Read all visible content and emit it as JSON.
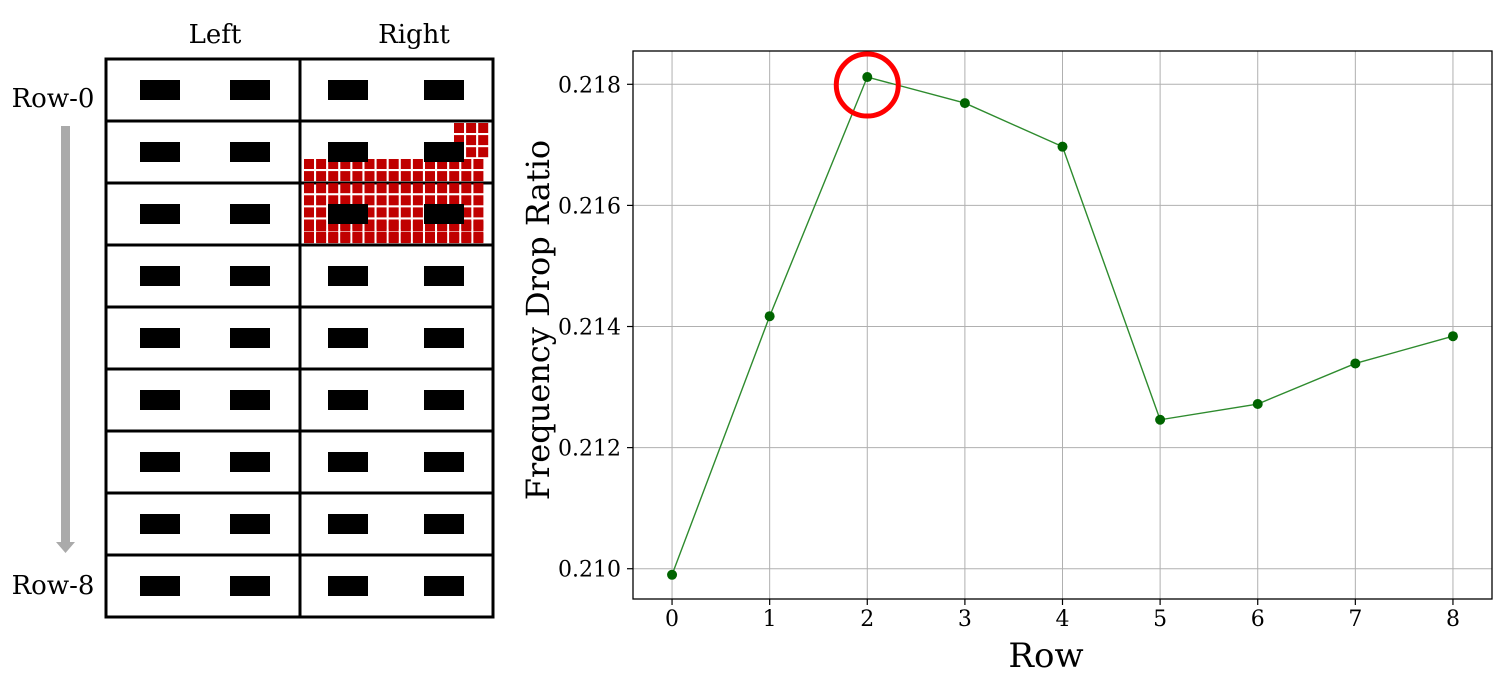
{
  "diagram": {
    "col_labels": [
      "Left",
      "Right"
    ],
    "row_labels": [
      "Row-0",
      "Row-8"
    ],
    "rows": 9,
    "blocks_per_cell": 2,
    "highlight_color": "#c00000",
    "arrow_color": "#aaaaaa"
  },
  "chart_data": {
    "type": "line",
    "title": "",
    "xlabel": "Row",
    "ylabel": "Frequency Drop Ratio",
    "x": [
      0,
      1,
      2,
      3,
      4,
      5,
      6,
      7,
      8
    ],
    "series": [
      {
        "values": [
          0.2099,
          0.21417,
          0.21812,
          0.21769,
          0.21697,
          0.21246,
          0.21272,
          0.21339,
          0.21384
        ],
        "color": "#006400",
        "line_color": "#2e8b2e"
      }
    ],
    "xticks": [
      "0",
      "1",
      "2",
      "3",
      "4",
      "5",
      "6",
      "7",
      "8"
    ],
    "yticks": [
      "0.210",
      "0.212",
      "0.214",
      "0.216",
      "0.218"
    ],
    "ytick_values": [
      0.21,
      0.212,
      0.214,
      0.216,
      0.218
    ],
    "xlim": [
      -0.4,
      8.4
    ],
    "ylim": [
      0.2095,
      0.21855
    ],
    "grid": true,
    "highlight": {
      "x": 2,
      "color": "#ff0000"
    }
  }
}
